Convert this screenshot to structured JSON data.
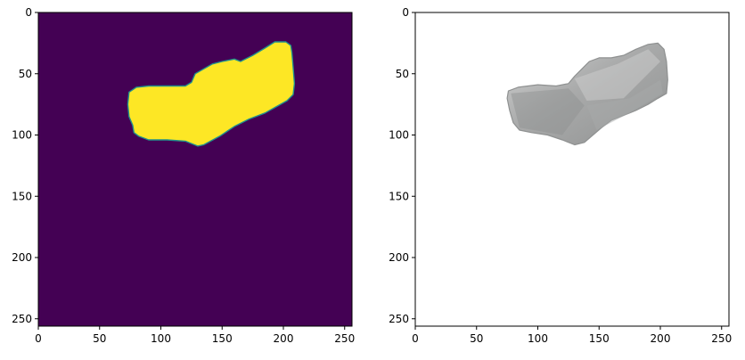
{
  "chart_data": [
    {
      "type": "image",
      "description_kind": "segmentation-mask",
      "colormap": "viridis",
      "colors": {
        "background": "#440154",
        "foreground": "#fde725",
        "edge": "#21918c"
      },
      "xlim": [
        0,
        256
      ],
      "ylim": [
        256,
        0
      ],
      "x_ticks": [
        0,
        50,
        100,
        150,
        200,
        250
      ],
      "y_ticks": [
        0,
        50,
        100,
        150,
        200,
        250
      ],
      "x_tick_labels": [
        "0",
        "50",
        "100",
        "150",
        "200",
        "250"
      ],
      "y_tick_labels": [
        "0",
        "50",
        "100",
        "150",
        "200",
        "250"
      ],
      "region_outline": [
        [
          74,
          65
        ],
        [
          80,
          61
        ],
        [
          90,
          60
        ],
        [
          105,
          60
        ],
        [
          120,
          60
        ],
        [
          125,
          57
        ],
        [
          128,
          50
        ],
        [
          135,
          46
        ],
        [
          142,
          42
        ],
        [
          150,
          40
        ],
        [
          160,
          38
        ],
        [
          165,
          40
        ],
        [
          175,
          35
        ],
        [
          185,
          29
        ],
        [
          193,
          24
        ],
        [
          202,
          24
        ],
        [
          206,
          27
        ],
        [
          207,
          33
        ],
        [
          208,
          45
        ],
        [
          209,
          58
        ],
        [
          208,
          67
        ],
        [
          203,
          72
        ],
        [
          194,
          77
        ],
        [
          185,
          82
        ],
        [
          172,
          87
        ],
        [
          160,
          93
        ],
        [
          148,
          101
        ],
        [
          135,
          108
        ],
        [
          130,
          109
        ],
        [
          120,
          105
        ],
        [
          105,
          104
        ],
        [
          90,
          104
        ],
        [
          82,
          101
        ],
        [
          78,
          98
        ],
        [
          77,
          92
        ],
        [
          74,
          85
        ],
        [
          73,
          75
        ]
      ]
    },
    {
      "type": "image",
      "description_kind": "grayscale-render",
      "colors": {
        "background": "#ffffff",
        "object_base": "#a9aaaa",
        "shadow": "#8f9191",
        "highlight": "#d2d3d3"
      },
      "xlim": [
        0,
        256
      ],
      "ylim": [
        256,
        0
      ],
      "x_ticks": [
        0,
        50,
        100,
        150,
        200,
        250
      ],
      "y_ticks": [
        0,
        50,
        100,
        150,
        200,
        250
      ],
      "x_tick_labels": [
        "0",
        "50",
        "100",
        "150",
        "200",
        "250"
      ],
      "y_tick_labels": [
        "0",
        "50",
        "100",
        "150",
        "200",
        "250"
      ],
      "region_outline": [
        [
          76,
          64
        ],
        [
          84,
          61
        ],
        [
          100,
          59
        ],
        [
          115,
          60
        ],
        [
          125,
          58
        ],
        [
          130,
          52
        ],
        [
          136,
          46
        ],
        [
          142,
          40
        ],
        [
          150,
          37
        ],
        [
          160,
          37
        ],
        [
          170,
          35
        ],
        [
          180,
          30
        ],
        [
          190,
          26
        ],
        [
          198,
          25
        ],
        [
          203,
          30
        ],
        [
          205,
          40
        ],
        [
          206,
          55
        ],
        [
          205,
          66
        ],
        [
          198,
          70
        ],
        [
          190,
          75
        ],
        [
          180,
          80
        ],
        [
          170,
          84
        ],
        [
          160,
          88
        ],
        [
          152,
          94
        ],
        [
          145,
          100
        ],
        [
          138,
          106
        ],
        [
          130,
          108
        ],
        [
          120,
          104
        ],
        [
          108,
          100
        ],
        [
          95,
          98
        ],
        [
          85,
          96
        ],
        [
          80,
          90
        ],
        [
          77,
          80
        ],
        [
          75,
          70
        ]
      ]
    }
  ]
}
